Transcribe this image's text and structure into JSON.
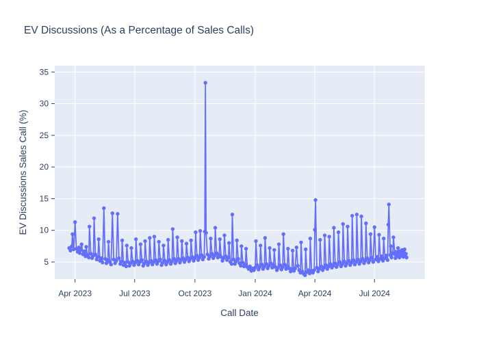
{
  "figure": {
    "background_color": "#ffffff",
    "plot_background_color": "#E5ECF6",
    "grid_color": "#ffffff",
    "text_color": "#2a3f5f",
    "series_color": "#636EFA"
  },
  "chart_data": {
    "type": "line",
    "mode": "lines+markers",
    "title": "EV Discussions (As a Percentage of Sales Calls)",
    "xlabel": "Call Date",
    "ylabel": "EV Discussions Sales Call (%)",
    "legend": "none",
    "grid": true,
    "y_ticks": [
      5,
      10,
      15,
      20,
      25,
      30,
      35
    ],
    "ylim": [
      2.3,
      36.0
    ],
    "xlim": [
      "2023-03-01",
      "2024-09-16"
    ],
    "x_ticks": [
      {
        "label": "Apr 2023",
        "date": "2023-04-01"
      },
      {
        "label": "Jul 2023",
        "date": "2023-07-01"
      },
      {
        "label": "Oct 2023",
        "date": "2023-10-01"
      },
      {
        "label": "Jan 2024",
        "date": "2024-01-01"
      },
      {
        "label": "Apr 2024",
        "date": "2024-04-01"
      },
      {
        "label": "Jul 2024",
        "date": "2024-07-01"
      }
    ],
    "points": [
      [
        "2023-03-23",
        7.2
      ],
      [
        "2023-03-25",
        6.8
      ],
      [
        "2023-03-27",
        7.5
      ],
      [
        "2023-03-28",
        9.4
      ],
      [
        "2023-03-30",
        7.0
      ],
      [
        "2023-04-01",
        11.3
      ],
      [
        "2023-04-03",
        7.1
      ],
      [
        "2023-04-05",
        6.6
      ],
      [
        "2023-04-07",
        7.3
      ],
      [
        "2023-04-08",
        6.4
      ],
      [
        "2023-04-10",
        6.9
      ],
      [
        "2023-04-11",
        7.8
      ],
      [
        "2023-04-13",
        6.2
      ],
      [
        "2023-04-15",
        6.7
      ],
      [
        "2023-04-17",
        5.9
      ],
      [
        "2023-04-18",
        7.4
      ],
      [
        "2023-04-20",
        6.1
      ],
      [
        "2023-04-22",
        5.7
      ],
      [
        "2023-04-23",
        10.6
      ],
      [
        "2023-04-25",
        6.3
      ],
      [
        "2023-04-27",
        5.6
      ],
      [
        "2023-04-29",
        6.0
      ],
      [
        "2023-04-30",
        11.9
      ],
      [
        "2023-05-02",
        6.2
      ],
      [
        "2023-05-04",
        5.4
      ],
      [
        "2023-05-06",
        5.8
      ],
      [
        "2023-05-07",
        8.6
      ],
      [
        "2023-05-09",
        5.2
      ],
      [
        "2023-05-11",
        5.6
      ],
      [
        "2023-05-13",
        4.9
      ],
      [
        "2023-05-15",
        13.5
      ],
      [
        "2023-05-17",
        5.5
      ],
      [
        "2023-05-19",
        4.8
      ],
      [
        "2023-05-21",
        5.3
      ],
      [
        "2023-05-22",
        8.2
      ],
      [
        "2023-05-24",
        5.0
      ],
      [
        "2023-05-26",
        4.6
      ],
      [
        "2023-05-28",
        12.7
      ],
      [
        "2023-05-30",
        5.4
      ],
      [
        "2023-06-01",
        4.8
      ],
      [
        "2023-06-03",
        5.2
      ],
      [
        "2023-06-05",
        12.6
      ],
      [
        "2023-06-07",
        5.6
      ],
      [
        "2023-06-09",
        4.7
      ],
      [
        "2023-06-11",
        5.1
      ],
      [
        "2023-06-12",
        8.4
      ],
      [
        "2023-06-14",
        4.5
      ],
      [
        "2023-06-16",
        4.9
      ],
      [
        "2023-06-18",
        4.3
      ],
      [
        "2023-06-19",
        7.6
      ],
      [
        "2023-06-21",
        5.0
      ],
      [
        "2023-06-23",
        4.4
      ],
      [
        "2023-06-25",
        4.8
      ],
      [
        "2023-06-26",
        7.2
      ],
      [
        "2023-06-28",
        5.1
      ],
      [
        "2023-06-30",
        4.5
      ],
      [
        "2023-07-02",
        4.9
      ],
      [
        "2023-07-03",
        8.6
      ],
      [
        "2023-07-05",
        5.2
      ],
      [
        "2023-07-07",
        4.6
      ],
      [
        "2023-07-09",
        5.0
      ],
      [
        "2023-07-10",
        7.8
      ],
      [
        "2023-07-12",
        5.3
      ],
      [
        "2023-07-14",
        4.4
      ],
      [
        "2023-07-16",
        4.8
      ],
      [
        "2023-07-17",
        8.3
      ],
      [
        "2023-07-19",
        5.1
      ],
      [
        "2023-07-21",
        4.5
      ],
      [
        "2023-07-23",
        4.9
      ],
      [
        "2023-07-24",
        8.8
      ],
      [
        "2023-07-26",
        5.2
      ],
      [
        "2023-07-28",
        4.6
      ],
      [
        "2023-07-30",
        5.0
      ],
      [
        "2023-07-31",
        9.0
      ],
      [
        "2023-08-02",
        5.3
      ],
      [
        "2023-08-04",
        4.7
      ],
      [
        "2023-08-06",
        5.1
      ],
      [
        "2023-08-07",
        8.2
      ],
      [
        "2023-08-09",
        5.4
      ],
      [
        "2023-08-11",
        4.5
      ],
      [
        "2023-08-13",
        4.9
      ],
      [
        "2023-08-14",
        7.6
      ],
      [
        "2023-08-16",
        5.2
      ],
      [
        "2023-08-18",
        4.6
      ],
      [
        "2023-08-20",
        5.0
      ],
      [
        "2023-08-21",
        8.5
      ],
      [
        "2023-08-23",
        5.3
      ],
      [
        "2023-08-25",
        4.7
      ],
      [
        "2023-08-27",
        5.1
      ],
      [
        "2023-08-28",
        10.2
      ],
      [
        "2023-08-30",
        5.5
      ],
      [
        "2023-09-01",
        4.8
      ],
      [
        "2023-09-03",
        5.2
      ],
      [
        "2023-09-04",
        8.9
      ],
      [
        "2023-09-06",
        5.5
      ],
      [
        "2023-09-08",
        4.9
      ],
      [
        "2023-09-10",
        5.3
      ],
      [
        "2023-09-11",
        8.3
      ],
      [
        "2023-09-13",
        5.6
      ],
      [
        "2023-09-15",
        5.0
      ],
      [
        "2023-09-17",
        5.4
      ],
      [
        "2023-09-18",
        7.9
      ],
      [
        "2023-09-20",
        5.7
      ],
      [
        "2023-09-22",
        5.1
      ],
      [
        "2023-09-24",
        5.5
      ],
      [
        "2023-09-25",
        8.4
      ],
      [
        "2023-09-27",
        5.8
      ],
      [
        "2023-09-29",
        5.2
      ],
      [
        "2023-10-01",
        5.6
      ],
      [
        "2023-10-02",
        9.7
      ],
      [
        "2023-10-04",
        6.0
      ],
      [
        "2023-10-06",
        5.3
      ],
      [
        "2023-10-08",
        5.7
      ],
      [
        "2023-10-09",
        9.9
      ],
      [
        "2023-10-11",
        6.1
      ],
      [
        "2023-10-13",
        5.4
      ],
      [
        "2023-10-15",
        5.8
      ],
      [
        "2023-10-16",
        9.8
      ],
      [
        "2023-10-17",
        33.3
      ],
      [
        "2023-10-18",
        9.6
      ],
      [
        "2023-10-20",
        6.2
      ],
      [
        "2023-10-22",
        5.5
      ],
      [
        "2023-10-24",
        5.9
      ],
      [
        "2023-10-25",
        8.7
      ],
      [
        "2023-10-27",
        6.3
      ],
      [
        "2023-10-29",
        5.6
      ],
      [
        "2023-10-31",
        6.0
      ],
      [
        "2023-11-01",
        10.4
      ],
      [
        "2023-11-03",
        6.4
      ],
      [
        "2023-11-05",
        5.7
      ],
      [
        "2023-11-07",
        6.1
      ],
      [
        "2023-11-08",
        8.6
      ],
      [
        "2023-11-10",
        5.8
      ],
      [
        "2023-11-12",
        5.2
      ],
      [
        "2023-11-14",
        5.6
      ],
      [
        "2023-11-15",
        9.2
      ],
      [
        "2023-11-17",
        5.9
      ],
      [
        "2023-11-19",
        5.3
      ],
      [
        "2023-11-21",
        5.7
      ],
      [
        "2023-11-22",
        8.0
      ],
      [
        "2023-11-24",
        5.0
      ],
      [
        "2023-11-26",
        4.7
      ],
      [
        "2023-11-27",
        12.5
      ],
      [
        "2023-11-29",
        5.4
      ],
      [
        "2023-12-01",
        4.7
      ],
      [
        "2023-12-03",
        5.1
      ],
      [
        "2023-12-04",
        8.4
      ],
      [
        "2023-12-06",
        5.5
      ],
      [
        "2023-12-08",
        4.8
      ],
      [
        "2023-12-10",
        4.4
      ],
      [
        "2023-12-11",
        7.5
      ],
      [
        "2023-12-13",
        4.9
      ],
      [
        "2023-12-15",
        4.3
      ],
      [
        "2023-12-17",
        4.6
      ],
      [
        "2023-12-18",
        7.1
      ],
      [
        "2023-12-20",
        4.2
      ],
      [
        "2023-12-22",
        3.9
      ],
      [
        "2023-12-24",
        4.3
      ],
      [
        "2023-12-26",
        3.6
      ],
      [
        "2023-12-28",
        4.0
      ],
      [
        "2023-12-30",
        3.7
      ],
      [
        "2024-01-01",
        4.1
      ],
      [
        "2024-01-02",
        8.3
      ],
      [
        "2024-01-04",
        4.5
      ],
      [
        "2024-01-06",
        3.8
      ],
      [
        "2024-01-08",
        4.2
      ],
      [
        "2024-01-09",
        7.6
      ],
      [
        "2024-01-11",
        4.6
      ],
      [
        "2024-01-13",
        3.9
      ],
      [
        "2024-01-15",
        4.3
      ],
      [
        "2024-01-16",
        8.8
      ],
      [
        "2024-01-18",
        4.7
      ],
      [
        "2024-01-20",
        4.0
      ],
      [
        "2024-01-22",
        4.4
      ],
      [
        "2024-01-23",
        7.2
      ],
      [
        "2024-01-25",
        4.8
      ],
      [
        "2024-01-27",
        4.1
      ],
      [
        "2024-01-29",
        4.5
      ],
      [
        "2024-01-30",
        6.9
      ],
      [
        "2024-02-01",
        4.2
      ],
      [
        "2024-02-03",
        3.7
      ],
      [
        "2024-02-05",
        4.1
      ],
      [
        "2024-02-06",
        7.8
      ],
      [
        "2024-02-08",
        4.5
      ],
      [
        "2024-02-10",
        3.8
      ],
      [
        "2024-02-12",
        4.2
      ],
      [
        "2024-02-13",
        9.4
      ],
      [
        "2024-02-15",
        4.6
      ],
      [
        "2024-02-17",
        3.9
      ],
      [
        "2024-02-19",
        4.3
      ],
      [
        "2024-02-20",
        7.1
      ],
      [
        "2024-02-22",
        4.0
      ],
      [
        "2024-02-24",
        3.5
      ],
      [
        "2024-02-26",
        3.9
      ],
      [
        "2024-02-27",
        6.8
      ],
      [
        "2024-02-29",
        3.6
      ],
      [
        "2024-03-02",
        4.0
      ],
      [
        "2024-03-04",
        7.3
      ],
      [
        "2024-03-06",
        4.4
      ],
      [
        "2024-03-08",
        3.7
      ],
      [
        "2024-03-10",
        3.3
      ],
      [
        "2024-03-11",
        8.1
      ],
      [
        "2024-03-13",
        3.5
      ],
      [
        "2024-03-15",
        3.1
      ],
      [
        "2024-03-17",
        2.9
      ],
      [
        "2024-03-18",
        7.0
      ],
      [
        "2024-03-20",
        3.4
      ],
      [
        "2024-03-22",
        3.7
      ],
      [
        "2024-03-24",
        3.2
      ],
      [
        "2024-03-25",
        8.7
      ],
      [
        "2024-03-27",
        3.6
      ],
      [
        "2024-03-29",
        3.3
      ],
      [
        "2024-03-31",
        3.7
      ],
      [
        "2024-04-01",
        10.1
      ],
      [
        "2024-04-02",
        14.8
      ],
      [
        "2024-04-04",
        4.1
      ],
      [
        "2024-04-06",
        3.5
      ],
      [
        "2024-04-08",
        3.9
      ],
      [
        "2024-04-09",
        8.5
      ],
      [
        "2024-04-11",
        4.3
      ],
      [
        "2024-04-13",
        3.7
      ],
      [
        "2024-04-15",
        4.1
      ],
      [
        "2024-04-16",
        9.2
      ],
      [
        "2024-04-18",
        4.5
      ],
      [
        "2024-04-20",
        3.9
      ],
      [
        "2024-04-22",
        4.3
      ],
      [
        "2024-04-23",
        9.0
      ],
      [
        "2024-04-25",
        4.7
      ],
      [
        "2024-04-27",
        4.1
      ],
      [
        "2024-04-29",
        4.4
      ],
      [
        "2024-04-30",
        10.4
      ],
      [
        "2024-05-02",
        4.8
      ],
      [
        "2024-05-04",
        4.2
      ],
      [
        "2024-05-06",
        4.6
      ],
      [
        "2024-05-07",
        9.7
      ],
      [
        "2024-05-09",
        5.0
      ],
      [
        "2024-05-11",
        4.3
      ],
      [
        "2024-05-13",
        4.7
      ],
      [
        "2024-05-14",
        11.0
      ],
      [
        "2024-05-16",
        5.1
      ],
      [
        "2024-05-18",
        4.4
      ],
      [
        "2024-05-20",
        4.8
      ],
      [
        "2024-05-21",
        10.6
      ],
      [
        "2024-05-23",
        5.2
      ],
      [
        "2024-05-25",
        4.5
      ],
      [
        "2024-05-27",
        4.9
      ],
      [
        "2024-05-28",
        12.3
      ],
      [
        "2024-05-30",
        5.3
      ],
      [
        "2024-06-01",
        4.6
      ],
      [
        "2024-06-03",
        5.0
      ],
      [
        "2024-06-04",
        12.5
      ],
      [
        "2024-06-06",
        5.4
      ],
      [
        "2024-06-08",
        4.7
      ],
      [
        "2024-06-10",
        5.1
      ],
      [
        "2024-06-11",
        12.2
      ],
      [
        "2024-06-13",
        5.5
      ],
      [
        "2024-06-15",
        4.8
      ],
      [
        "2024-06-17",
        5.2
      ],
      [
        "2024-06-18",
        11.1
      ],
      [
        "2024-06-20",
        5.6
      ],
      [
        "2024-06-22",
        4.9
      ],
      [
        "2024-06-24",
        5.3
      ],
      [
        "2024-06-25",
        9.4
      ],
      [
        "2024-06-27",
        5.7
      ],
      [
        "2024-06-29",
        5.0
      ],
      [
        "2024-07-01",
        10.5
      ],
      [
        "2024-07-03",
        5.4
      ],
      [
        "2024-07-05",
        5.8
      ],
      [
        "2024-07-07",
        5.1
      ],
      [
        "2024-07-08",
        9.3
      ],
      [
        "2024-07-10",
        5.5
      ],
      [
        "2024-07-12",
        5.9
      ],
      [
        "2024-07-14",
        5.2
      ],
      [
        "2024-07-15",
        8.7
      ],
      [
        "2024-07-17",
        5.6
      ],
      [
        "2024-07-19",
        6.0
      ],
      [
        "2024-07-21",
        5.3
      ],
      [
        "2024-07-22",
        10.9
      ],
      [
        "2024-07-23",
        14.1
      ],
      [
        "2024-07-25",
        6.1
      ],
      [
        "2024-07-26",
        7.5
      ],
      [
        "2024-07-27",
        5.7
      ],
      [
        "2024-07-29",
        6.4
      ],
      [
        "2024-07-30",
        8.9
      ],
      [
        "2024-08-01",
        6.2
      ],
      [
        "2024-08-02",
        5.6
      ],
      [
        "2024-08-03",
        6.6
      ],
      [
        "2024-08-05",
        5.9
      ],
      [
        "2024-08-06",
        7.2
      ],
      [
        "2024-08-07",
        6.3
      ],
      [
        "2024-08-08",
        5.7
      ],
      [
        "2024-08-09",
        6.7
      ],
      [
        "2024-08-10",
        6.0
      ],
      [
        "2024-08-12",
        6.9
      ],
      [
        "2024-08-13",
        6.1
      ],
      [
        "2024-08-14",
        5.8
      ],
      [
        "2024-08-15",
        6.5
      ],
      [
        "2024-08-16",
        7.0
      ],
      [
        "2024-08-17",
        5.9
      ],
      [
        "2024-08-18",
        6.3
      ],
      [
        "2024-08-19",
        5.7
      ]
    ]
  }
}
